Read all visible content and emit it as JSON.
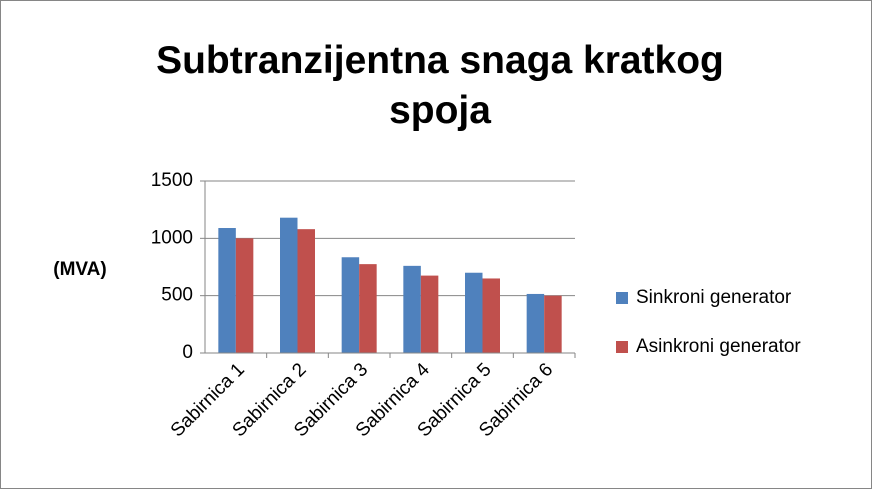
{
  "chart_data": {
    "type": "bar",
    "title": "Subtranzijentna snaga kratkog spoja",
    "y_label": "(MVA)",
    "categories": [
      "Sabirnica 1",
      "Sabirnica 2",
      "Sabirnica 3",
      "Sabirnica 4",
      "Sabirnica 5",
      "Sabirnica 6"
    ],
    "series": [
      {
        "name": "Sinkroni generator",
        "color": "#4f81bd",
        "values": [
          1090,
          1180,
          835,
          760,
          700,
          515
        ]
      },
      {
        "name": "Asinkroni generator",
        "color": "#c0504d",
        "values": [
          1000,
          1080,
          775,
          675,
          650,
          500
        ]
      }
    ],
    "ylim": [
      0,
      1500
    ],
    "yticks": [
      0,
      500,
      1000,
      1500
    ],
    "grid": true,
    "legend": "right"
  }
}
